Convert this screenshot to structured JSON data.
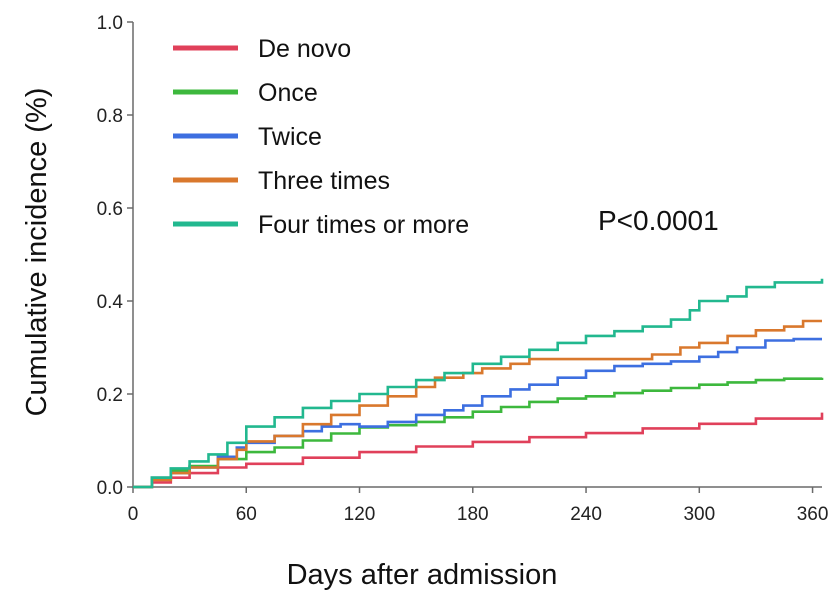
{
  "chart_data": {
    "type": "line",
    "xlabel": "Days after admission",
    "ylabel": "Cumulative incidence (%)",
    "xlim": [
      0,
      365
    ],
    "ylim": [
      0,
      1
    ],
    "xticks": [
      0,
      60,
      120,
      180,
      240,
      300,
      360
    ],
    "yticks": [
      0.0,
      0.2,
      0.4,
      0.6,
      0.8,
      1.0
    ],
    "xtick_labels": [
      "0",
      "60",
      "120",
      "180",
      "240",
      "300",
      "360"
    ],
    "ytick_labels": [
      "0.0",
      "0.2",
      "0.4",
      "0.6",
      "0.8",
      "1.0"
    ],
    "grid": false,
    "legend_position": "top-left",
    "annotation": "P<0.0001",
    "series": [
      {
        "name": "De novo",
        "color": "#e0405a",
        "points": [
          [
            0,
            0
          ],
          [
            10,
            0.01
          ],
          [
            20,
            0.02
          ],
          [
            30,
            0.03
          ],
          [
            45,
            0.042
          ],
          [
            60,
            0.05
          ],
          [
            90,
            0.063
          ],
          [
            120,
            0.075
          ],
          [
            150,
            0.087
          ],
          [
            180,
            0.097
          ],
          [
            210,
            0.107
          ],
          [
            240,
            0.116
          ],
          [
            270,
            0.126
          ],
          [
            300,
            0.136
          ],
          [
            330,
            0.147
          ],
          [
            365,
            0.16
          ]
        ]
      },
      {
        "name": "Once",
        "color": "#3db83d",
        "points": [
          [
            0,
            0
          ],
          [
            10,
            0.02
          ],
          [
            20,
            0.035
          ],
          [
            30,
            0.045
          ],
          [
            45,
            0.06
          ],
          [
            60,
            0.075
          ],
          [
            75,
            0.085
          ],
          [
            90,
            0.1
          ],
          [
            105,
            0.115
          ],
          [
            120,
            0.128
          ],
          [
            135,
            0.133
          ],
          [
            150,
            0.14
          ],
          [
            165,
            0.15
          ],
          [
            180,
            0.162
          ],
          [
            195,
            0.172
          ],
          [
            210,
            0.183
          ],
          [
            225,
            0.19
          ],
          [
            240,
            0.195
          ],
          [
            255,
            0.202
          ],
          [
            270,
            0.207
          ],
          [
            285,
            0.213
          ],
          [
            300,
            0.22
          ],
          [
            315,
            0.225
          ],
          [
            330,
            0.23
          ],
          [
            345,
            0.233
          ],
          [
            365,
            0.235
          ]
        ]
      },
      {
        "name": "Twice",
        "color": "#3d6fe0",
        "points": [
          [
            0,
            0
          ],
          [
            10,
            0.02
          ],
          [
            20,
            0.03
          ],
          [
            30,
            0.042
          ],
          [
            45,
            0.065
          ],
          [
            55,
            0.085
          ],
          [
            60,
            0.095
          ],
          [
            75,
            0.11
          ],
          [
            90,
            0.12
          ],
          [
            100,
            0.13
          ],
          [
            110,
            0.135
          ],
          [
            120,
            0.13
          ],
          [
            135,
            0.14
          ],
          [
            150,
            0.155
          ],
          [
            165,
            0.165
          ],
          [
            175,
            0.175
          ],
          [
            185,
            0.195
          ],
          [
            200,
            0.21
          ],
          [
            210,
            0.22
          ],
          [
            225,
            0.235
          ],
          [
            240,
            0.25
          ],
          [
            255,
            0.26
          ],
          [
            270,
            0.265
          ],
          [
            285,
            0.27
          ],
          [
            300,
            0.28
          ],
          [
            310,
            0.29
          ],
          [
            320,
            0.3
          ],
          [
            335,
            0.315
          ],
          [
            350,
            0.318
          ],
          [
            365,
            0.318
          ]
        ]
      },
      {
        "name": "Three times",
        "color": "#d9782d",
        "points": [
          [
            0,
            0
          ],
          [
            10,
            0.015
          ],
          [
            20,
            0.03
          ],
          [
            30,
            0.042
          ],
          [
            45,
            0.06
          ],
          [
            55,
            0.08
          ],
          [
            60,
            0.098
          ],
          [
            75,
            0.11
          ],
          [
            90,
            0.135
          ],
          [
            105,
            0.155
          ],
          [
            120,
            0.175
          ],
          [
            135,
            0.195
          ],
          [
            150,
            0.215
          ],
          [
            160,
            0.235
          ],
          [
            175,
            0.245
          ],
          [
            185,
            0.255
          ],
          [
            200,
            0.265
          ],
          [
            210,
            0.275
          ],
          [
            240,
            0.275
          ],
          [
            260,
            0.275
          ],
          [
            275,
            0.285
          ],
          [
            290,
            0.3
          ],
          [
            300,
            0.31
          ],
          [
            315,
            0.325
          ],
          [
            330,
            0.337
          ],
          [
            345,
            0.345
          ],
          [
            355,
            0.357
          ],
          [
            365,
            0.357
          ]
        ]
      },
      {
        "name": "Four times or more",
        "color": "#22b88f",
        "points": [
          [
            0,
            0
          ],
          [
            10,
            0.02
          ],
          [
            20,
            0.04
          ],
          [
            30,
            0.055
          ],
          [
            40,
            0.07
          ],
          [
            50,
            0.095
          ],
          [
            60,
            0.13
          ],
          [
            75,
            0.15
          ],
          [
            90,
            0.17
          ],
          [
            105,
            0.185
          ],
          [
            120,
            0.2
          ],
          [
            135,
            0.215
          ],
          [
            150,
            0.23
          ],
          [
            165,
            0.245
          ],
          [
            180,
            0.265
          ],
          [
            195,
            0.28
          ],
          [
            210,
            0.295
          ],
          [
            225,
            0.31
          ],
          [
            240,
            0.325
          ],
          [
            255,
            0.335
          ],
          [
            270,
            0.345
          ],
          [
            285,
            0.36
          ],
          [
            295,
            0.38
          ],
          [
            300,
            0.4
          ],
          [
            315,
            0.41
          ],
          [
            325,
            0.43
          ],
          [
            340,
            0.44
          ],
          [
            365,
            0.448
          ]
        ]
      }
    ]
  }
}
